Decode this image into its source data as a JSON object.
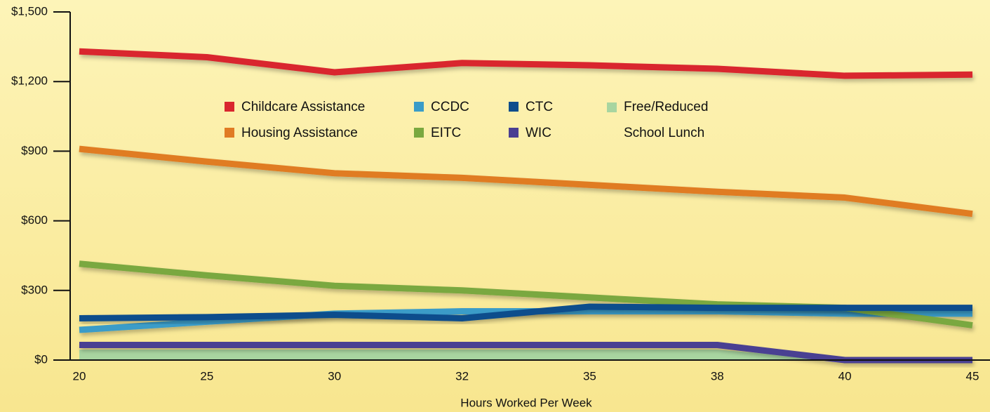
{
  "chart_data": {
    "type": "line",
    "x_label": "Hours Worked Per Week",
    "categories": [
      "20",
      "25",
      "30",
      "32",
      "35",
      "38",
      "40",
      "45"
    ],
    "ylim": [
      0,
      1500
    ],
    "yticks": [
      {
        "value": 0,
        "label": "$0"
      },
      {
        "value": 300,
        "label": "$300"
      },
      {
        "value": 600,
        "label": "$600"
      },
      {
        "value": 900,
        "label": "$900"
      },
      {
        "value": 1200,
        "label": "$1,200"
      },
      {
        "value": 1500,
        "label": "$1,500"
      }
    ],
    "series": [
      {
        "name": "Childcare Assistance",
        "color": "#d9262e",
        "values": [
          1330,
          1305,
          1240,
          1280,
          1270,
          1255,
          1225,
          1230
        ]
      },
      {
        "name": "Housing Assistance",
        "color": "#e07b24",
        "values": [
          910,
          855,
          805,
          785,
          755,
          725,
          700,
          630
        ]
      },
      {
        "name": "CCDC",
        "color": "#3a9cc8",
        "values": [
          130,
          165,
          200,
          210,
          210,
          210,
          200,
          200
        ]
      },
      {
        "name": "EITC",
        "color": "#7aa83f",
        "values": [
          415,
          365,
          320,
          300,
          270,
          240,
          225,
          150
        ]
      },
      {
        "name": "CTC",
        "color": "#0d4d8c",
        "values": [
          180,
          185,
          195,
          180,
          230,
          225,
          225,
          225
        ]
      },
      {
        "name": "WIC",
        "color": "#4a3f92",
        "values": [
          65,
          65,
          65,
          65,
          65,
          65,
          0,
          0
        ]
      },
      {
        "name": "Free/Reduced School Lunch",
        "color": "#a8d5a0",
        "style": "area",
        "values": [
          45,
          45,
          45,
          45,
          45,
          45,
          0,
          0
        ]
      }
    ]
  }
}
